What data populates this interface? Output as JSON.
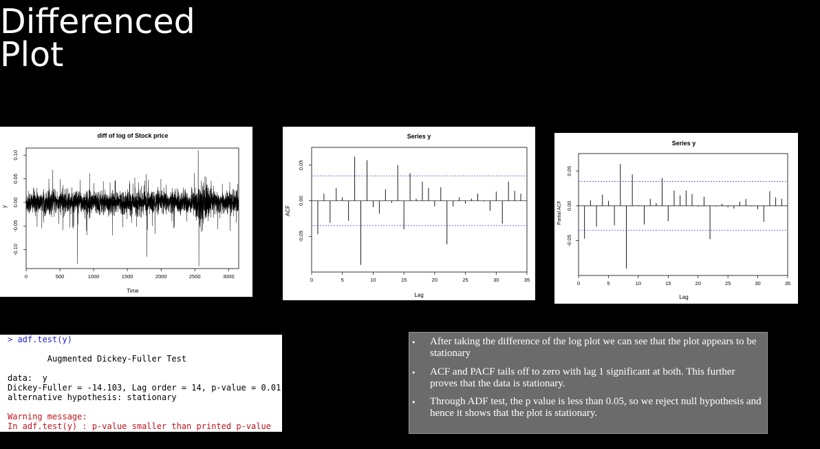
{
  "slide": {
    "title_line1": "Differenced",
    "title_line2": "Plot"
  },
  "colors": {
    "background": "#000000",
    "series": "#000000",
    "conf_band": "#4040ff",
    "notes_bg": "#6b6b6b"
  },
  "chart_data": [
    {
      "type": "line",
      "title": "diff of log of Stock price",
      "xlabel": "Time",
      "ylabel": "y",
      "xlim": [
        0,
        3150
      ],
      "ylim": [
        -0.14,
        0.115
      ],
      "xticks": [
        "0",
        "500",
        "1000",
        "1500",
        "2000",
        "2500",
        "3000"
      ],
      "yticks": [
        "-0.10",
        "-0.05",
        "0.00",
        "0.05",
        "0.10"
      ],
      "n": 3150,
      "notable_points": [
        {
          "x": 760,
          "y": -0.13
        },
        {
          "x": 1790,
          "y": -0.115
        },
        {
          "x": 2550,
          "y": 0.11
        },
        {
          "x": 2560,
          "y": -0.135
        },
        {
          "x": 2650,
          "y": 0.055
        }
      ]
    },
    {
      "type": "bar",
      "title": "Series y",
      "xlabel": "Lag",
      "ylabel": "ACF",
      "xlim": [
        0,
        35
      ],
      "ylim": [
        -0.1,
        0.075
      ],
      "xticks": [
        "0",
        "5",
        "10",
        "15",
        "20",
        "25",
        "30",
        "35"
      ],
      "yticks": [
        "-0.05",
        "0.00",
        "0.05"
      ],
      "conf_band": 0.035,
      "lags": [
        1,
        2,
        3,
        4,
        5,
        6,
        7,
        8,
        9,
        10,
        11,
        12,
        13,
        14,
        15,
        16,
        17,
        18,
        19,
        20,
        21,
        22,
        23,
        24,
        25,
        26,
        27,
        28,
        29,
        30,
        31,
        32,
        33,
        34
      ],
      "values": [
        -0.047,
        0.01,
        -0.031,
        0.018,
        0.005,
        -0.028,
        0.062,
        -0.09,
        0.057,
        -0.009,
        -0.018,
        0.016,
        -0.003,
        0.05,
        -0.04,
        0.039,
        0.003,
        0.027,
        0.018,
        -0.008,
        0.019,
        -0.061,
        -0.008,
        0.005,
        -0.004,
        0.003,
        0.01,
        -0.001,
        -0.014,
        0.013,
        -0.032,
        0.027,
        0.014,
        0.01
      ]
    },
    {
      "type": "bar",
      "title": "Series  y",
      "xlabel": "Lag",
      "ylabel": "Partial ACF",
      "xlim": [
        0,
        35
      ],
      "ylim": [
        -0.1,
        0.075
      ],
      "xticks": [
        "0",
        "5",
        "10",
        "15",
        "20",
        "25",
        "30",
        "35"
      ],
      "yticks": [
        "-0.05",
        "0.00",
        "0.05"
      ],
      "conf_band": 0.035,
      "lags": [
        1,
        2,
        3,
        4,
        5,
        6,
        7,
        8,
        9,
        10,
        11,
        12,
        13,
        14,
        15,
        16,
        17,
        18,
        19,
        20,
        21,
        22,
        23,
        24,
        25,
        26,
        27,
        28,
        29,
        30,
        31,
        32,
        33,
        34
      ],
      "values": [
        -0.047,
        0.008,
        -0.03,
        0.016,
        0.007,
        -0.028,
        0.06,
        -0.09,
        0.045,
        0.001,
        -0.027,
        0.01,
        0.004,
        0.04,
        -0.022,
        0.022,
        0.015,
        0.022,
        0.017,
        -0.001,
        0.013,
        -0.048,
        -0.001,
        0.003,
        -0.002,
        -0.004,
        0.006,
        0.01,
        -0.001,
        -0.005,
        -0.023,
        0.021,
        0.012,
        0.01
      ]
    }
  ],
  "console": {
    "cmd": "> adf.test(y)",
    "header": "        Augmented Dickey-Fuller Test",
    "data_line": "data:  y",
    "stat_line": "Dickey-Fuller = -14.103, Lag order = 14, p-value = 0.01",
    "alt_line": "alternative hypothesis: stationary",
    "warn1": "Warning message:",
    "warn2": "In adf.test(y) : p-value smaller than printed p-value"
  },
  "notes": {
    "bullet": "•",
    "items": [
      "After taking the difference of the log plot we can see that the plot appears to be stationary",
      "ACF and PACF tails off to zero with lag 1 significant at both. This further proves that the data is stationary.",
      "Through ADF test, the p value is less than 0.05, so we reject null hypothesis and hence it shows that the plot is stationary."
    ]
  }
}
